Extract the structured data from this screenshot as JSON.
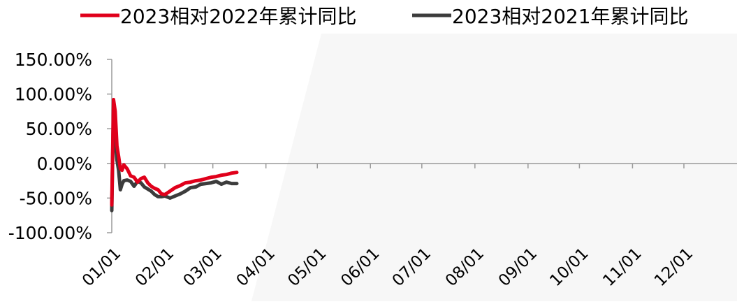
{
  "chart_data": {
    "type": "line",
    "title": "",
    "xlabel": "",
    "ylabel": "",
    "x_ticks": [
      "01/01",
      "02/01",
      "03/01",
      "04/01",
      "05/01",
      "06/01",
      "07/01",
      "08/01",
      "09/01",
      "10/01",
      "11/01",
      "12/01"
    ],
    "y_ticks": [
      "150.00%",
      "100.00%",
      "50.00%",
      "0.00%",
      "-50.00%",
      "-100.00%"
    ],
    "ylim": [
      -1.0,
      1.5
    ],
    "y_unit": "percent",
    "grid": false,
    "legend_position": "top",
    "series": [
      {
        "name": "2023相对2022年累计同比",
        "color": "#e0001b",
        "points": [
          {
            "x": "01/01",
            "y": -0.6
          },
          {
            "x": "01/02",
            "y": 0.92
          },
          {
            "x": "01/03",
            "y": 0.75
          },
          {
            "x": "01/04",
            "y": 0.25
          },
          {
            "x": "01/05",
            "y": 0.1
          },
          {
            "x": "01/06",
            "y": -0.08
          },
          {
            "x": "01/07",
            "y": -0.1
          },
          {
            "x": "01/08",
            "y": -0.02
          },
          {
            "x": "01/10",
            "y": -0.08
          },
          {
            "x": "01/12",
            "y": -0.18
          },
          {
            "x": "01/14",
            "y": -0.2
          },
          {
            "x": "01/16",
            "y": -0.27
          },
          {
            "x": "01/18",
            "y": -0.22
          },
          {
            "x": "01/20",
            "y": -0.2
          },
          {
            "x": "01/22",
            "y": -0.28
          },
          {
            "x": "01/24",
            "y": -0.33
          },
          {
            "x": "01/26",
            "y": -0.36
          },
          {
            "x": "01/28",
            "y": -0.38
          },
          {
            "x": "01/30",
            "y": -0.44
          },
          {
            "x": "02/01",
            "y": -0.45
          },
          {
            "x": "02/04",
            "y": -0.4
          },
          {
            "x": "02/07",
            "y": -0.35
          },
          {
            "x": "02/10",
            "y": -0.32
          },
          {
            "x": "02/13",
            "y": -0.28
          },
          {
            "x": "02/16",
            "y": -0.27
          },
          {
            "x": "02/19",
            "y": -0.25
          },
          {
            "x": "02/22",
            "y": -0.24
          },
          {
            "x": "02/25",
            "y": -0.22
          },
          {
            "x": "02/28",
            "y": -0.2
          },
          {
            "x": "03/03",
            "y": -0.19
          },
          {
            "x": "03/06",
            "y": -0.17
          },
          {
            "x": "03/09",
            "y": -0.16
          },
          {
            "x": "03/12",
            "y": -0.14
          },
          {
            "x": "03/15",
            "y": -0.13
          }
        ]
      },
      {
        "name": "2023相对2021年累计同比",
        "color": "#3c3c3c",
        "points": [
          {
            "x": "01/01",
            "y": -0.68
          },
          {
            "x": "01/02",
            "y": 0.82
          },
          {
            "x": "01/03",
            "y": 0.35
          },
          {
            "x": "01/04",
            "y": 0.05
          },
          {
            "x": "01/05",
            "y": -0.1
          },
          {
            "x": "01/06",
            "y": -0.38
          },
          {
            "x": "01/07",
            "y": -0.3
          },
          {
            "x": "01/08",
            "y": -0.25
          },
          {
            "x": "01/10",
            "y": -0.24
          },
          {
            "x": "01/12",
            "y": -0.26
          },
          {
            "x": "01/14",
            "y": -0.33
          },
          {
            "x": "01/16",
            "y": -0.26
          },
          {
            "x": "01/18",
            "y": -0.28
          },
          {
            "x": "01/20",
            "y": -0.34
          },
          {
            "x": "01/22",
            "y": -0.37
          },
          {
            "x": "01/24",
            "y": -0.4
          },
          {
            "x": "01/26",
            "y": -0.45
          },
          {
            "x": "01/28",
            "y": -0.48
          },
          {
            "x": "01/30",
            "y": -0.48
          },
          {
            "x": "02/01",
            "y": -0.47
          },
          {
            "x": "02/04",
            "y": -0.5
          },
          {
            "x": "02/07",
            "y": -0.47
          },
          {
            "x": "02/10",
            "y": -0.44
          },
          {
            "x": "02/13",
            "y": -0.4
          },
          {
            "x": "02/16",
            "y": -0.35
          },
          {
            "x": "02/19",
            "y": -0.34
          },
          {
            "x": "02/22",
            "y": -0.3
          },
          {
            "x": "02/25",
            "y": -0.29
          },
          {
            "x": "02/28",
            "y": -0.28
          },
          {
            "x": "03/03",
            "y": -0.26
          },
          {
            "x": "03/06",
            "y": -0.3
          },
          {
            "x": "03/09",
            "y": -0.27
          },
          {
            "x": "03/12",
            "y": -0.29
          },
          {
            "x": "03/15",
            "y": -0.29
          }
        ]
      }
    ]
  }
}
